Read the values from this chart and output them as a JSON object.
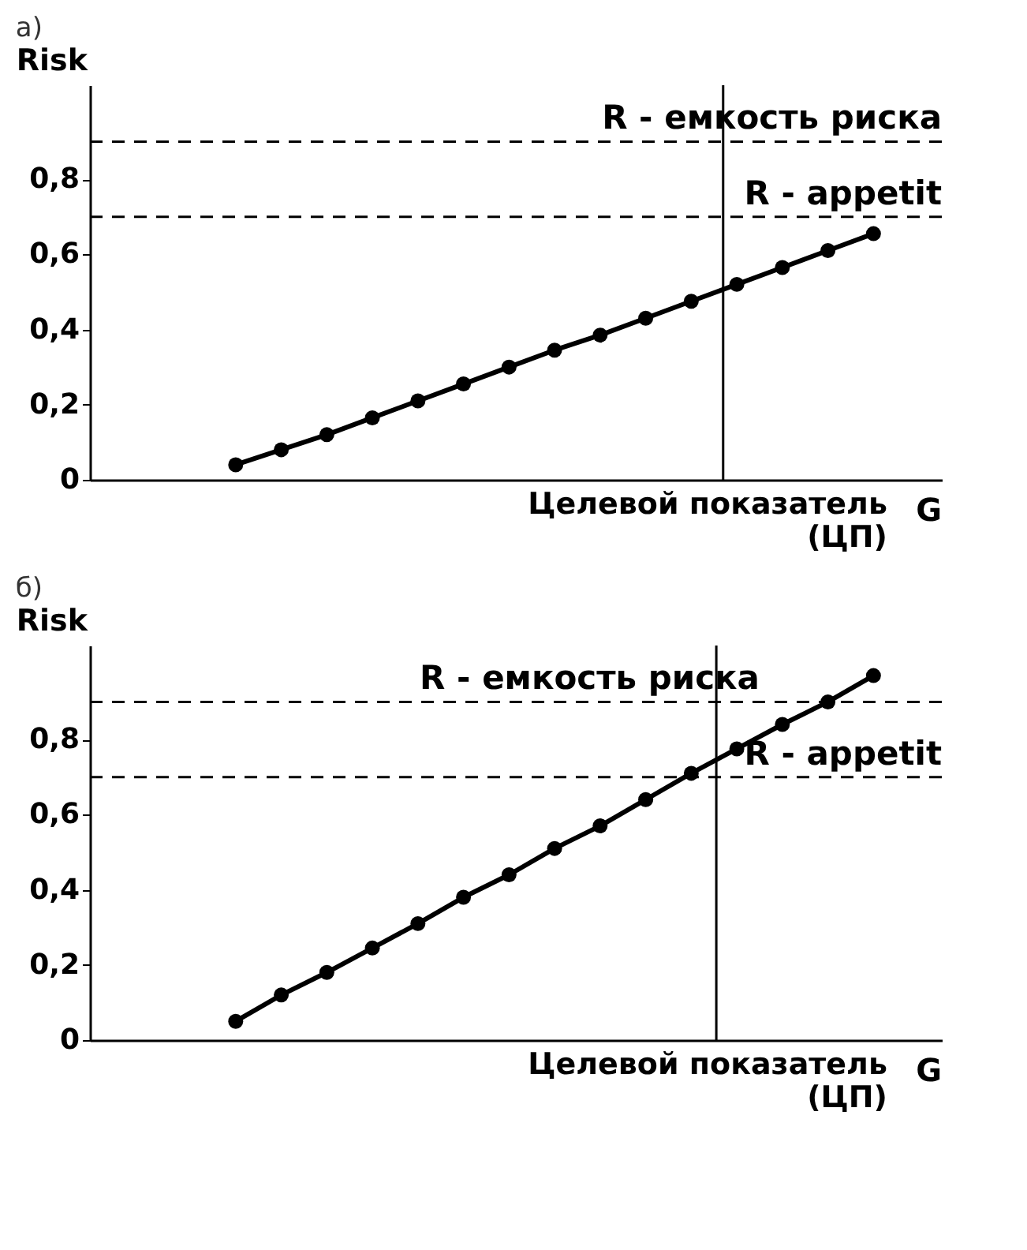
{
  "chart_data": [
    {
      "type": "line",
      "title": "а)",
      "ylabel": "Risk",
      "xlabel": "Целевой показатель\n(ЦП)",
      "annotations": [
        "G"
      ],
      "categories": [
        null,
        null,
        null,
        null,
        null,
        null,
        null,
        null,
        null,
        null,
        null,
        null,
        null,
        null,
        null
      ],
      "series": [
        {
          "color": "#000000",
          "values": [
            0.04,
            0.08,
            0.12,
            0.165,
            0.21,
            0.255,
            0.3,
            0.345,
            0.385,
            0.43,
            0.475,
            0.52,
            0.565,
            0.61,
            0.655
          ]
        }
      ],
      "ylim": [
        0,
        1.05
      ],
      "yticks": [
        {
          "value": 0,
          "label": "0"
        },
        {
          "value": 0.2,
          "label": "0,2"
        },
        {
          "value": 0.4,
          "label": "0,4"
        },
        {
          "value": 0.6,
          "label": "0,6"
        },
        {
          "value": 0.8,
          "label": "0,8"
        }
      ],
      "ref_lines": [
        {
          "axis": "y",
          "value": 0.9,
          "label": "R - емкость риска",
          "line_style": "dashed",
          "color": "#000000"
        },
        {
          "axis": "y",
          "value": 0.7,
          "label": "R - appetit",
          "line_style": "dashed",
          "color": "#000000"
        }
      ],
      "marker": "circle",
      "line_style": "solid",
      "grid": false
    },
    {
      "type": "line",
      "title": "б)",
      "ylabel": "Risk",
      "xlabel": "Целевой показатель\n(ЦП)",
      "annotations": [
        "G"
      ],
      "categories": [
        null,
        null,
        null,
        null,
        null,
        null,
        null,
        null,
        null,
        null,
        null,
        null,
        null,
        null,
        null
      ],
      "series": [
        {
          "color": "#000000",
          "values": [
            0.05,
            0.12,
            0.18,
            0.245,
            0.31,
            0.38,
            0.44,
            0.51,
            0.57,
            0.64,
            0.71,
            0.775,
            0.84,
            0.9,
            0.97
          ]
        }
      ],
      "ylim": [
        0,
        1.05
      ],
      "yticks": [
        {
          "value": 0,
          "label": "0"
        },
        {
          "value": 0.2,
          "label": "0,2"
        },
        {
          "value": 0.4,
          "label": "0,4"
        },
        {
          "value": 0.6,
          "label": "0,6"
        },
        {
          "value": 0.8,
          "label": "0,8"
        }
      ],
      "ref_lines": [
        {
          "axis": "y",
          "value": 0.9,
          "label": "R - емкость риска",
          "line_style": "dashed",
          "color": "#000000"
        },
        {
          "axis": "y",
          "value": 0.7,
          "label": "R - appetit",
          "line_style": "dashed",
          "color": "#000000"
        }
      ],
      "marker": "circle",
      "line_style": "solid",
      "grid": false
    }
  ]
}
